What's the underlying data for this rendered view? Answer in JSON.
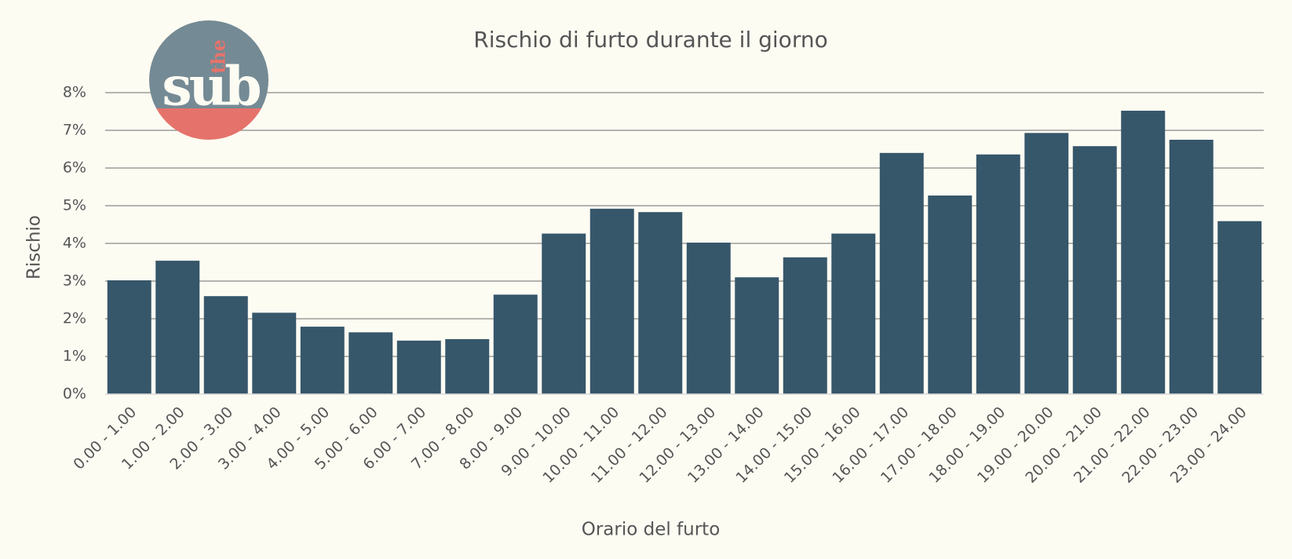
{
  "chart_data": {
    "type": "bar",
    "title": "Rischio di furto durante il giorno",
    "x_label": "Orario del furto",
    "y_label": "Rischio",
    "logo": {
      "top": "the",
      "bottom": "sub"
    },
    "categories": [
      "0.00 - 1.00",
      "1.00 - 2.00",
      "2.00 - 3.00",
      "3.00 - 4.00",
      "4.00 - 5.00",
      "5.00 - 6.00",
      "6.00 - 7.00",
      "7.00 - 8.00",
      "8.00 - 9.00",
      "9.00 - 10.00",
      "10.00 - 11.00",
      "11.00 - 12.00",
      "12.00 - 13.00",
      "13.00 - 14.00",
      "14.00 - 15.00",
      "15.00 - 16.00",
      "16.00 - 17.00",
      "17.00 - 18.00",
      "18.00 - 19.00",
      "19.00 - 20.00",
      "20.00 - 21.00",
      "21.00 - 22.00",
      "22.00 - 23.00",
      "23.00 - 24.00"
    ],
    "values": [
      3.02,
      3.54,
      2.6,
      2.16,
      1.79,
      1.64,
      1.42,
      1.46,
      2.64,
      4.26,
      4.92,
      4.83,
      4.02,
      3.1,
      3.63,
      4.26,
      6.4,
      5.27,
      6.36,
      6.93,
      6.58,
      7.52,
      6.75,
      4.59
    ],
    "color": "#36566a",
    "ylim": [
      0,
      8
    ],
    "yticks": [
      {
        "value": 0,
        "label": "0%"
      },
      {
        "value": 1,
        "label": "1%"
      },
      {
        "value": 2,
        "label": "2%"
      },
      {
        "value": 3,
        "label": "3%"
      },
      {
        "value": 4,
        "label": "4%"
      },
      {
        "value": 5,
        "label": "5%"
      },
      {
        "value": 6,
        "label": "6%"
      },
      {
        "value": 7,
        "label": "7%"
      },
      {
        "value": 8,
        "label": "8%"
      }
    ],
    "grid": true
  }
}
